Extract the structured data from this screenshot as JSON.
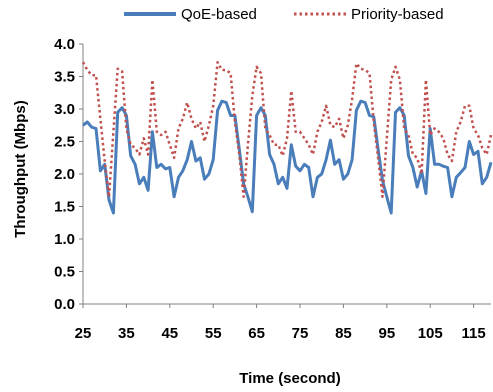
{
  "chart_data": {
    "type": "line",
    "xlabel": "Time (second)",
    "ylabel": "Throughput (Mbps)",
    "xlim": [
      25,
      119
    ],
    "ylim": [
      0,
      4.0
    ],
    "x_ticks": [
      25,
      35,
      45,
      55,
      65,
      75,
      85,
      95,
      105,
      115
    ],
    "y_ticks": [
      0.0,
      0.5,
      1.0,
      1.5,
      2.0,
      2.5,
      3.0,
      3.5,
      4.0
    ],
    "y_tick_labels": [
      "0.0",
      "0.5",
      "1.0",
      "1.5",
      "2.0",
      "2.5",
      "3.0",
      "3.5",
      "4.0"
    ],
    "x_tick_labels": [
      "25",
      "35",
      "45",
      "55",
      "65",
      "75",
      "85",
      "95",
      "105",
      "115"
    ],
    "grid": false,
    "legend_position": "top",
    "series": [
      {
        "name": "QoE-based",
        "color": "#4a7ebb",
        "style": "solid",
        "x": [
          25,
          26,
          27,
          28,
          29,
          30,
          31,
          32,
          33,
          34,
          35,
          36,
          37,
          38,
          39,
          40,
          41,
          42,
          43,
          44,
          45,
          46,
          47,
          48,
          49,
          50,
          51,
          52,
          53,
          54,
          55,
          56,
          57,
          58,
          59,
          60,
          61,
          62,
          63,
          64,
          65,
          66,
          67,
          68,
          69,
          70,
          71,
          72,
          73,
          74,
          75,
          76,
          77,
          78,
          79,
          80,
          81,
          82,
          83,
          84,
          85,
          86,
          87,
          88,
          89,
          90,
          91,
          92,
          93,
          94,
          95,
          96,
          97,
          98,
          99,
          100,
          101,
          102,
          103,
          104,
          105,
          106,
          107,
          108,
          109,
          110,
          111,
          112,
          113,
          114,
          115,
          116,
          117,
          118,
          119
        ],
        "y": [
          2.75,
          2.8,
          2.72,
          2.7,
          2.05,
          2.15,
          1.6,
          1.4,
          2.95,
          3.02,
          2.9,
          2.28,
          2.15,
          1.85,
          1.95,
          1.75,
          2.65,
          2.1,
          2.15,
          2.08,
          2.1,
          1.65,
          1.95,
          2.05,
          2.22,
          2.5,
          2.2,
          2.25,
          1.92,
          2.0,
          2.22,
          2.98,
          3.12,
          3.1,
          2.9,
          2.9,
          2.38,
          1.85,
          1.65,
          1.42,
          2.9,
          3.02,
          2.9,
          2.3,
          2.15,
          1.85,
          1.95,
          1.78,
          2.45,
          2.12,
          2.05,
          2.15,
          2.1,
          1.65,
          1.95,
          2.0,
          2.22,
          2.52,
          2.15,
          2.22,
          1.92,
          2.0,
          2.22,
          2.98,
          3.12,
          3.1,
          2.9,
          2.88,
          2.38,
          1.9,
          1.65,
          1.4,
          2.95,
          3.02,
          2.9,
          2.28,
          2.1,
          1.8,
          2.05,
          1.7,
          2.7,
          2.15,
          2.15,
          2.12,
          2.1,
          1.65,
          1.95,
          2.02,
          2.1,
          2.5,
          2.3,
          2.35,
          1.85,
          1.95,
          2.18
        ]
      },
      {
        "name": "Priority-based",
        "color": "#c0504d",
        "style": "dotted",
        "x": [
          25,
          26,
          27,
          28,
          29,
          30,
          31,
          32,
          33,
          34,
          35,
          36,
          37,
          38,
          39,
          40,
          41,
          42,
          43,
          44,
          45,
          46,
          47,
          48,
          49,
          50,
          51,
          52,
          53,
          54,
          55,
          56,
          57,
          58,
          59,
          60,
          61,
          62,
          63,
          64,
          65,
          66,
          67,
          68,
          69,
          70,
          71,
          72,
          73,
          74,
          75,
          76,
          77,
          78,
          79,
          80,
          81,
          82,
          83,
          84,
          85,
          86,
          87,
          88,
          89,
          90,
          91,
          92,
          93,
          94,
          95,
          96,
          97,
          98,
          99,
          100,
          101,
          102,
          103,
          104,
          105,
          106,
          107,
          108,
          109,
          110,
          111,
          112,
          113,
          114,
          115,
          116,
          117,
          118,
          119
        ],
        "y": [
          3.72,
          3.6,
          3.52,
          3.52,
          2.85,
          2.2,
          1.65,
          2.65,
          3.62,
          3.58,
          2.7,
          2.45,
          2.4,
          2.3,
          2.55,
          2.3,
          3.45,
          2.65,
          2.6,
          2.65,
          2.45,
          2.25,
          2.7,
          2.85,
          3.1,
          2.85,
          2.7,
          2.8,
          2.5,
          2.75,
          3.05,
          3.72,
          3.6,
          3.6,
          3.55,
          2.8,
          2.3,
          1.65,
          2.45,
          3.2,
          3.65,
          3.55,
          2.7,
          2.6,
          2.45,
          2.45,
          2.28,
          2.55,
          3.28,
          2.65,
          2.65,
          2.55,
          2.45,
          2.3,
          2.65,
          2.8,
          3.05,
          2.75,
          2.72,
          2.85,
          2.55,
          2.75,
          3.15,
          3.7,
          3.62,
          3.6,
          3.55,
          2.8,
          2.25,
          1.65,
          2.55,
          3.45,
          3.65,
          3.45,
          2.7,
          2.6,
          2.3,
          2.25,
          2.0,
          3.45,
          2.6,
          2.7,
          2.65,
          2.55,
          2.3,
          2.2,
          2.65,
          2.8,
          3.05,
          3.05,
          2.7,
          2.6,
          2.4,
          2.3,
          2.6
        ]
      }
    ]
  }
}
